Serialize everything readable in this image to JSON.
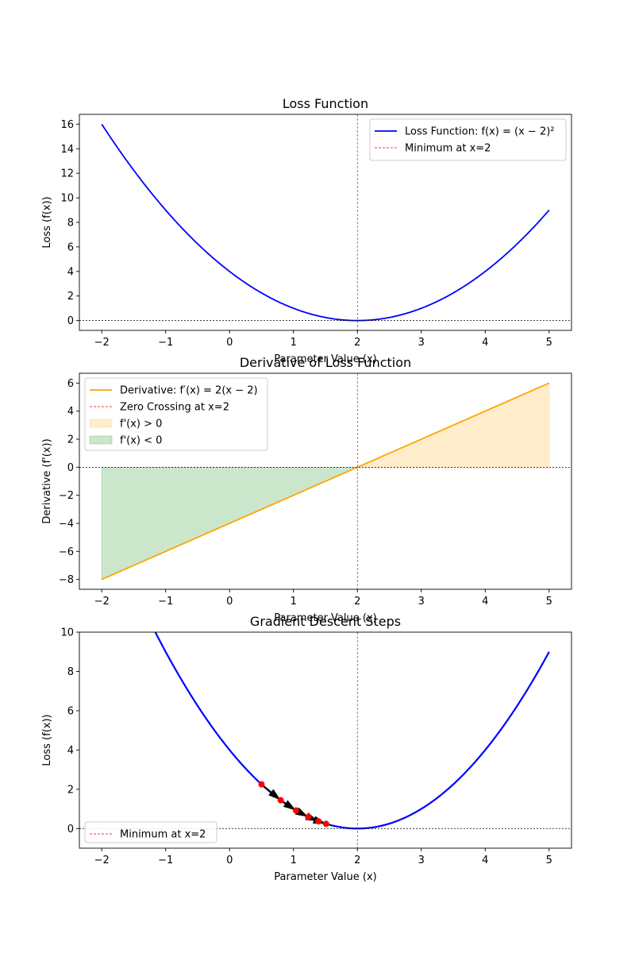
{
  "chart_data": [
    {
      "type": "line",
      "title": "Loss Function",
      "xlabel": "Parameter Value (x)",
      "ylabel": "Loss (f(x))",
      "xlim": [
        -2.35,
        5.35
      ],
      "ylim": [
        -0.8,
        16.8
      ],
      "xticks": [
        -2,
        -1,
        0,
        1,
        2,
        3,
        4,
        5
      ],
      "yticks": [
        0,
        2,
        4,
        6,
        8,
        10,
        12,
        14,
        16
      ],
      "x_range": [
        -2,
        5
      ],
      "series": [
        {
          "name": "Loss Function: f(x) = (x − 2)²",
          "kind": "function",
          "formula": "(x-2)^2",
          "color": "#0000ff"
        }
      ],
      "reference_lines": [
        {
          "name": "Minimum at x=2",
          "orientation": "vertical",
          "value": 2,
          "color": "#ff0000",
          "style": "dashed",
          "in_legend": true
        },
        {
          "orientation": "horizontal",
          "value": 0,
          "color": "#000000",
          "style": "dashed",
          "in_legend": false
        }
      ],
      "legend": {
        "position": "top-right",
        "entries": [
          "Loss Function: f(x) = (x − 2)²",
          "Minimum at x=2"
        ]
      }
    },
    {
      "type": "line",
      "title": "Derivative of Loss Function",
      "xlabel": "Parameter Value (x)",
      "ylabel": "Derivative (f'(x))",
      "xlim": [
        -2.35,
        5.35
      ],
      "ylim": [
        -8.7,
        6.7
      ],
      "xticks": [
        -2,
        -1,
        0,
        1,
        2,
        3,
        4,
        5
      ],
      "yticks": [
        -8,
        -6,
        -4,
        -2,
        0,
        2,
        4,
        6
      ],
      "x_range": [
        -2,
        5
      ],
      "series": [
        {
          "name": "Derivative: f′(x) = 2(x − 2)",
          "kind": "function",
          "formula": "2(x-2)",
          "color": "#ffa500"
        }
      ],
      "fills": [
        {
          "name": "f'(x) > 0",
          "from_x": 2,
          "to_x": 5,
          "color": "#ffa500",
          "opacity": 0.2
        },
        {
          "name": "f'(x) < 0",
          "from_x": -2,
          "to_x": 2,
          "color": "#008000",
          "opacity": 0.2
        }
      ],
      "reference_lines": [
        {
          "name": "Zero Crossing at x=2",
          "orientation": "vertical",
          "value": 2,
          "color": "#ff0000",
          "style": "dashed",
          "in_legend": true
        },
        {
          "orientation": "horizontal",
          "value": 0,
          "color": "#000000",
          "style": "dashed",
          "in_legend": false
        }
      ],
      "legend": {
        "position": "top-left",
        "entries": [
          "Derivative: f′(x) = 2(x − 2)",
          "Zero Crossing at x=2",
          "f'(x) > 0",
          "f'(x) < 0"
        ]
      }
    },
    {
      "type": "line",
      "title": "Gradient Descent Steps",
      "xlabel": "Parameter Value (x)",
      "ylabel": "Loss (f(x))",
      "xlim": [
        -2.35,
        5.35
      ],
      "ylim": [
        -1,
        10
      ],
      "xticks": [
        -2,
        -1,
        0,
        1,
        2,
        3,
        4,
        5
      ],
      "yticks": [
        0,
        2,
        4,
        6,
        8,
        10
      ],
      "x_range": [
        -2,
        5
      ],
      "series": [
        {
          "kind": "function",
          "formula": "(x-2)^2",
          "color": "#0000ff"
        }
      ],
      "steps": {
        "x": [
          0.5,
          0.8,
          1.04,
          1.23,
          1.39,
          1.51
        ],
        "y": [
          2.25,
          1.44,
          0.92,
          0.59,
          0.37,
          0.24
        ],
        "marker_color": "#ff0000",
        "arrow_color": "#000000"
      },
      "reference_lines": [
        {
          "name": "Minimum at x=2",
          "orientation": "vertical",
          "value": 2,
          "color": "#ff0000",
          "style": "dashed",
          "in_legend": true
        },
        {
          "orientation": "horizontal",
          "value": 0,
          "color": "#000000",
          "style": "dashed",
          "in_legend": false
        }
      ],
      "legend": {
        "position": "lower-left",
        "entries": [
          "Minimum at x=2"
        ]
      }
    }
  ]
}
